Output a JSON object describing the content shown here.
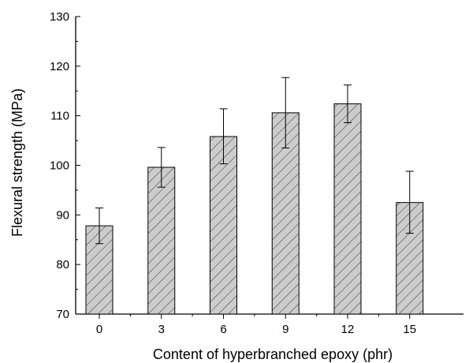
{
  "chart_data": {
    "type": "bar",
    "title": "",
    "xlabel": "Content of hyperbranched epoxy (phr)",
    "ylabel": "Flexural strength (MPa)",
    "categories": [
      "0",
      "3",
      "6",
      "9",
      "12",
      "15"
    ],
    "values": [
      87.8,
      99.6,
      105.8,
      110.6,
      112.4,
      92.5
    ],
    "errors_upper": [
      91.4,
      103.6,
      111.4,
      117.7,
      116.2,
      98.8
    ],
    "errors_lower": [
      84.2,
      95.6,
      100.3,
      103.5,
      108.6,
      86.3
    ],
    "ylim": [
      70,
      130
    ],
    "yticks": [
      "70",
      "80",
      "90",
      "100",
      "110",
      "120",
      "130"
    ],
    "grid": false,
    "bar_fill": "#cccccc",
    "hatch": "diagonal"
  }
}
